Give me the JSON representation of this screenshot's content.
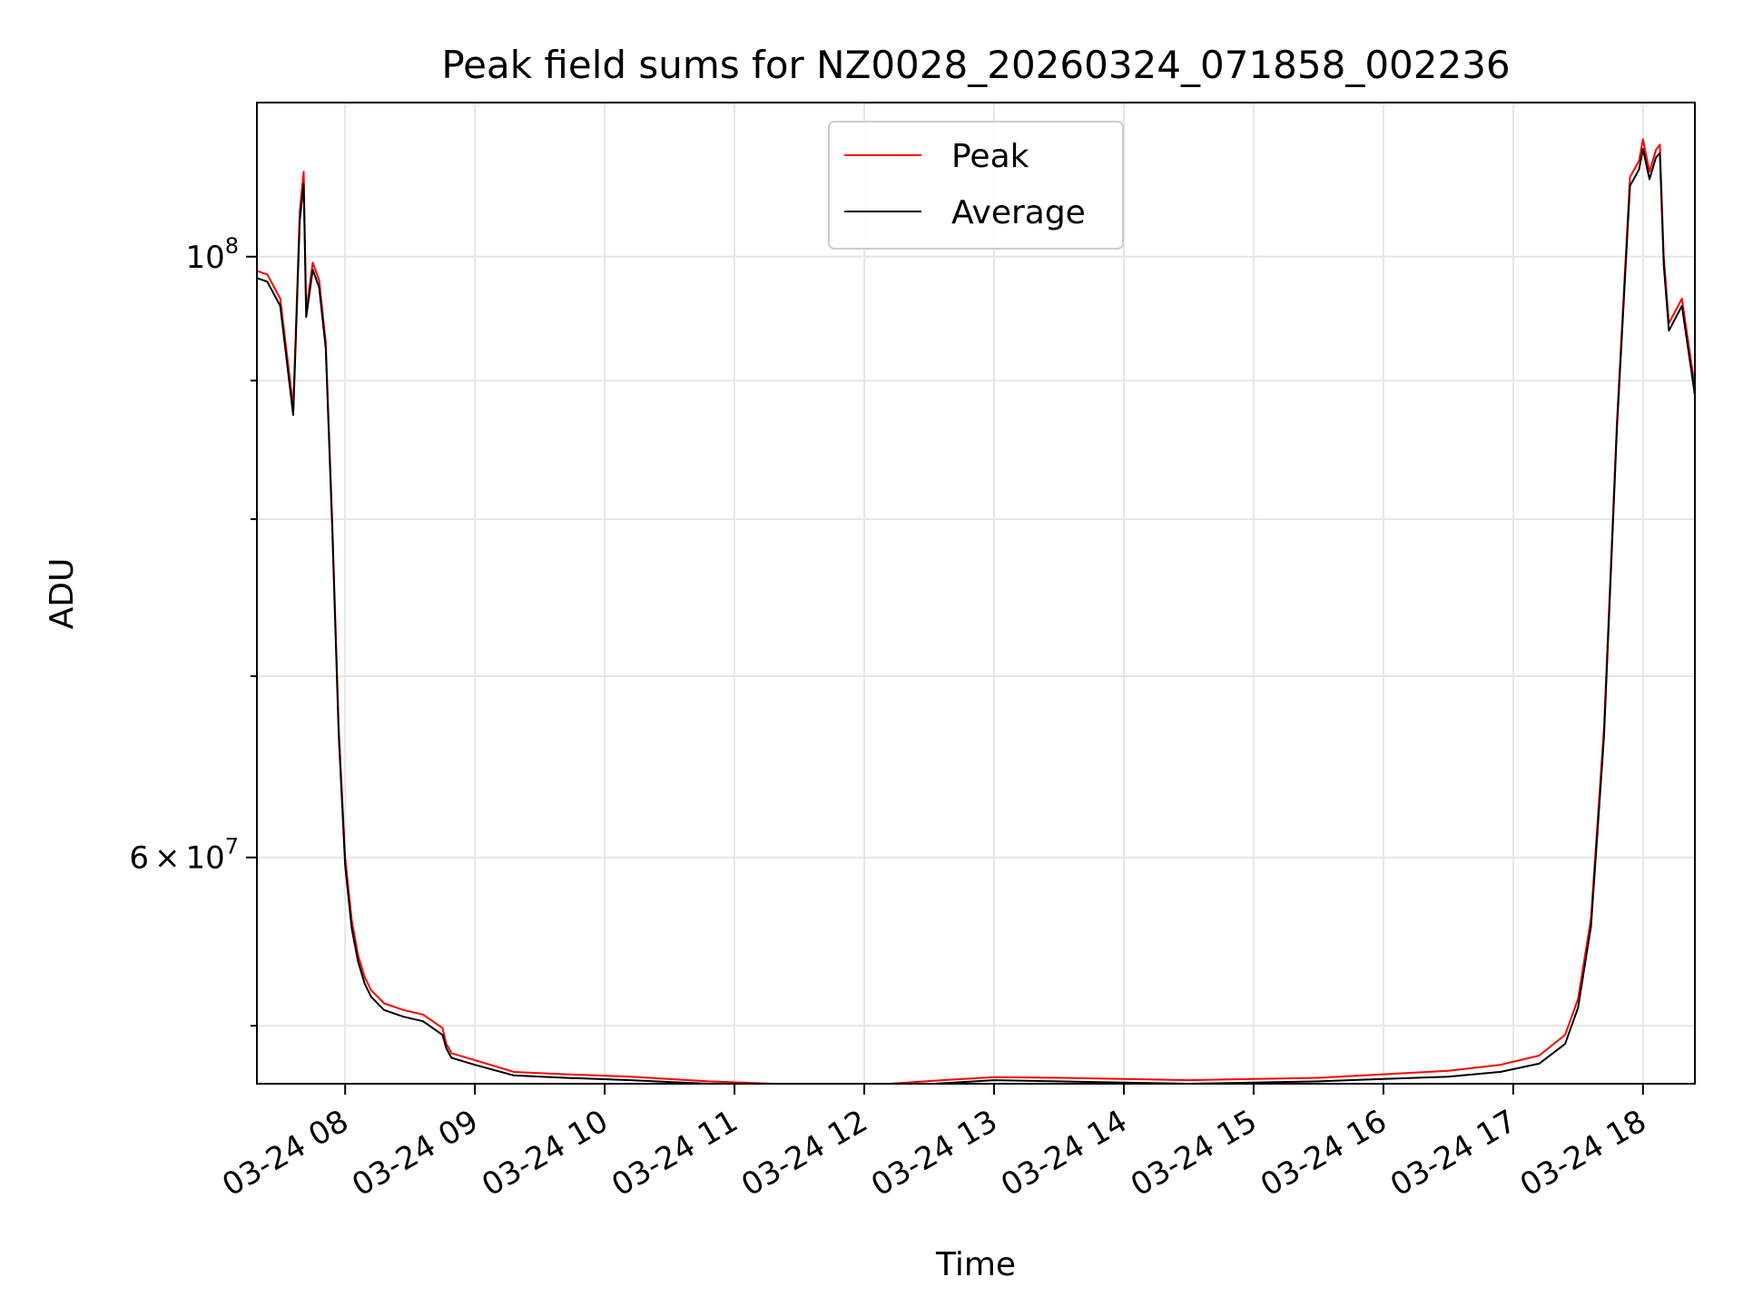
{
  "chart_data": {
    "type": "line",
    "title": "Peak field sums for NZ0028_20260324_071858_002236",
    "xlabel": "Time",
    "ylabel": "ADU",
    "yscale": "log",
    "xlim": [
      7.32,
      18.4
    ],
    "ylim": [
      49500000,
      114000000
    ],
    "grid": true,
    "legend": {
      "position": "top-center",
      "entries": [
        "Peak",
        "Average"
      ]
    },
    "x_ticks": [
      {
        "value": 8,
        "label": "03-24 08"
      },
      {
        "value": 9,
        "label": "03-24 09"
      },
      {
        "value": 10,
        "label": "03-24 10"
      },
      {
        "value": 11,
        "label": "03-24 11"
      },
      {
        "value": 12,
        "label": "03-24 12"
      },
      {
        "value": 13,
        "label": "03-24 13"
      },
      {
        "value": 14,
        "label": "03-24 14"
      },
      {
        "value": 15,
        "label": "03-24 15"
      },
      {
        "value": 16,
        "label": "03-24 16"
      },
      {
        "value": 17,
        "label": "03-24 17"
      },
      {
        "value": 18,
        "label": "03-24 18"
      }
    ],
    "y_ticks_major": [
      {
        "value": 60000000,
        "base": "6",
        "times": "×",
        "ten": "10",
        "exp": "7"
      },
      {
        "value": 100000000,
        "base": "",
        "times": "",
        "ten": "10",
        "exp": "8"
      }
    ],
    "y_ticks_minor": [
      52000000,
      70000000,
      80000000,
      90000000
    ],
    "series": [
      {
        "name": "Peak",
        "color": "#ff0000",
        "x": [
          7.32,
          7.4,
          7.5,
          7.6,
          7.62,
          7.65,
          7.68,
          7.7,
          7.75,
          7.8,
          7.85,
          7.9,
          7.95,
          8.0,
          8.05,
          8.1,
          8.15,
          8.2,
          8.3,
          8.45,
          8.6,
          8.75,
          8.78,
          8.82,
          9.0,
          9.3,
          9.7,
          10.2,
          10.8,
          11.3,
          11.8,
          12.2,
          12.6,
          13.0,
          13.5,
          14.0,
          14.5,
          15.0,
          15.5,
          16.0,
          16.5,
          16.9,
          17.2,
          17.4,
          17.5,
          17.6,
          17.7,
          17.8,
          17.9,
          17.97,
          18.0,
          18.05,
          18.1,
          18.13,
          18.16,
          18.2,
          18.3,
          18.4
        ],
        "y": [
          98800000,
          98500000,
          96500000,
          88000000,
          94000000,
          104000000,
          107500000,
          95500000,
          99500000,
          98000000,
          93000000,
          80000000,
          67000000,
          60000000,
          56900000,
          55200000,
          54200000,
          53600000,
          53000000,
          52700000,
          52500000,
          51900000,
          51200000,
          50800000,
          50500000,
          50000000,
          49900000,
          49800000,
          49600000,
          49500000,
          49450000,
          49500000,
          49650000,
          49780000,
          49750000,
          49700000,
          49650000,
          49700000,
          49750000,
          49900000,
          50050000,
          50300000,
          50700000,
          51600000,
          53200000,
          57000000,
          67000000,
          87000000,
          107000000,
          108500000,
          110500000,
          107500000,
          109500000,
          110000000,
          100000000,
          94500000,
          96500000,
          89500000
        ]
      },
      {
        "name": "Average",
        "color": "#000000",
        "x": [
          7.32,
          7.4,
          7.5,
          7.6,
          7.62,
          7.65,
          7.68,
          7.7,
          7.75,
          7.8,
          7.85,
          7.9,
          7.95,
          8.0,
          8.05,
          8.1,
          8.15,
          8.2,
          8.3,
          8.45,
          8.6,
          8.75,
          8.78,
          8.82,
          9.0,
          9.3,
          9.7,
          10.2,
          10.8,
          11.3,
          11.8,
          12.2,
          12.6,
          13.0,
          13.5,
          14.0,
          14.5,
          15.0,
          15.5,
          16.0,
          16.5,
          16.9,
          17.2,
          17.4,
          17.5,
          17.6,
          17.7,
          17.8,
          17.9,
          17.97,
          18.0,
          18.05,
          18.1,
          18.13,
          18.16,
          18.2,
          18.3,
          18.4
        ],
        "y": [
          98200000,
          97900000,
          95900000,
          87400000,
          93300000,
          103100000,
          106400000,
          95000000,
          98900000,
          97400000,
          92500000,
          79500000,
          66600000,
          59600000,
          56500000,
          54900000,
          53900000,
          53300000,
          52700000,
          52400000,
          52200000,
          51600000,
          51000000,
          50600000,
          50300000,
          49850000,
          49750000,
          49650000,
          49500000,
          49400000,
          49350000,
          49400000,
          49520000,
          49650000,
          49600000,
          49550000,
          49500000,
          49550000,
          49600000,
          49700000,
          49800000,
          50000000,
          50350000,
          51200000,
          52800000,
          56600000,
          66500000,
          86500000,
          106200000,
          107700000,
          109600000,
          106800000,
          108800000,
          109200000,
          99300000,
          93900000,
          95900000,
          88900000
        ]
      }
    ]
  }
}
